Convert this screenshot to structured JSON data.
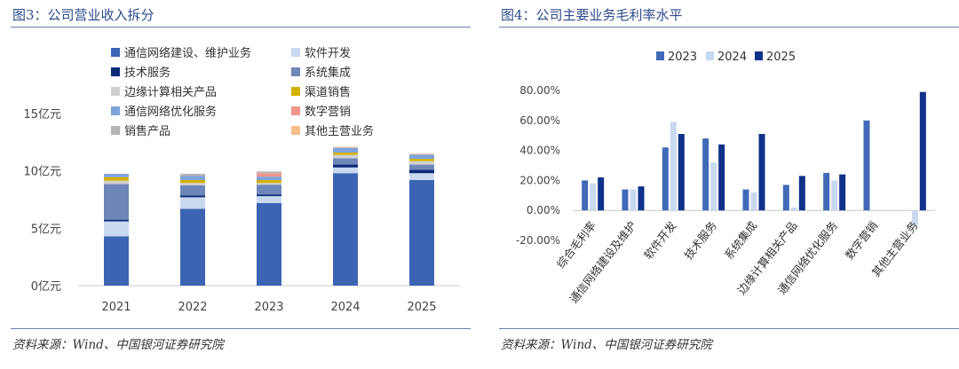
{
  "left": {
    "title": "图3：公司营业收入拆分",
    "source": "资料来源：Wind、中国银河证券研究院"
  },
  "right": {
    "title": "图4：公司主要业务毛利率水平",
    "source": "资料来源：Wind、中国银河证券研究院"
  },
  "chart_data": [
    {
      "type": "bar",
      "stacked": true,
      "title": "",
      "xlabel": "",
      "ylabel": "",
      "categories": [
        "2021",
        "2022",
        "2023",
        "2024",
        "2025"
      ],
      "ylim": [
        0,
        15
      ],
      "yticks": [
        0,
        5,
        10,
        15
      ],
      "ytick_labels": [
        "0亿元",
        "5亿元",
        "10亿元",
        "15亿元"
      ],
      "legend_position": "top",
      "series": [
        {
          "name": "通信网络建设、维护业务",
          "color": "#3d64b4",
          "values": [
            4.3,
            6.7,
            7.2,
            9.8,
            9.2
          ]
        },
        {
          "name": "软件开发",
          "color": "#c8d9f0",
          "values": [
            1.3,
            1.0,
            0.6,
            0.5,
            0.6
          ]
        },
        {
          "name": "技术服务",
          "color": "#0d2a7a",
          "values": [
            0.15,
            0.15,
            0.15,
            0.25,
            0.3
          ]
        },
        {
          "name": "系统集成",
          "color": "#6f86b8",
          "values": [
            3.1,
            0.9,
            0.85,
            0.55,
            0.45
          ]
        },
        {
          "name": "边缘计算相关产品",
          "color": "#d0d0d0",
          "values": [
            0.3,
            0.2,
            0.15,
            0.3,
            0.3
          ]
        },
        {
          "name": "渠道销售",
          "color": "#d4b200",
          "values": [
            0.3,
            0.25,
            0.25,
            0.2,
            0.2
          ]
        },
        {
          "name": "通信网络优化服务",
          "color": "#7fa3dc",
          "values": [
            0.3,
            0.35,
            0.3,
            0.4,
            0.35
          ]
        },
        {
          "name": "数字营销",
          "color": "#f2958a",
          "values": [
            0,
            0,
            0.3,
            0,
            0
          ]
        },
        {
          "name": "销售产品",
          "color": "#b5b5b5",
          "values": [
            0,
            0.2,
            0.15,
            0.05,
            0.05
          ]
        },
        {
          "name": "其他主营业务",
          "color": "#f7be8a",
          "values": [
            0,
            0,
            0,
            0.05,
            0.05
          ]
        }
      ]
    },
    {
      "type": "bar",
      "title": "",
      "xlabel": "",
      "ylabel": "",
      "categories": [
        "综合毛利率",
        "通信网络建设及维护",
        "软件开发",
        "技术服务",
        "系统集成",
        "边缘计算相关产品",
        "通信网络优化服务",
        "数字营销",
        "其他主营业务"
      ],
      "ylim": [
        -20,
        80
      ],
      "yticks": [
        -20,
        0,
        20,
        40,
        60,
        80
      ],
      "ytick_labels": [
        "-20.00%",
        "0.00%",
        "20.00%",
        "40.00%",
        "60.00%",
        "80.00%"
      ],
      "legend_position": "top",
      "series": [
        {
          "name": "2023",
          "color": "#4169b8",
          "values": [
            20,
            14,
            42,
            48,
            14,
            17,
            25,
            60,
            null
          ]
        },
        {
          "name": "2024",
          "color": "#c8d9f0",
          "values": [
            18,
            14,
            59,
            32,
            12,
            2,
            20,
            null,
            -10
          ]
        },
        {
          "name": "2025",
          "color": "#10318a",
          "values": [
            22,
            16,
            51,
            44,
            51,
            23,
            24,
            null,
            79
          ]
        }
      ]
    }
  ]
}
